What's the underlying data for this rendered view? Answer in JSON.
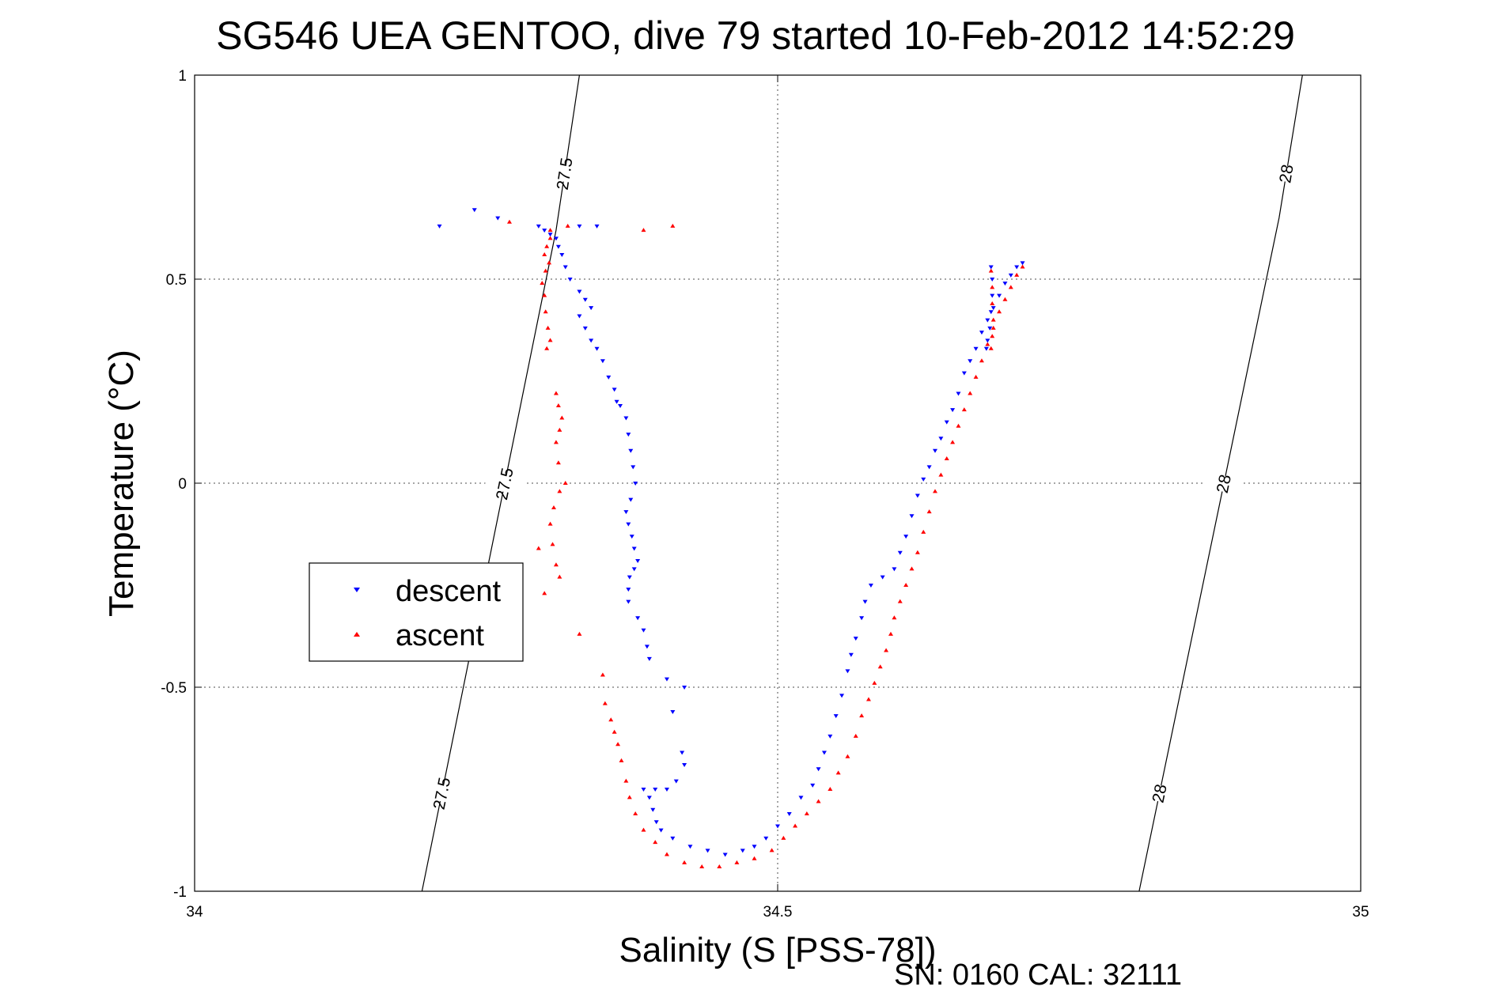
{
  "chart_data": {
    "type": "scatter",
    "title": "SG546 UEA GENTOO, dive 79 started 10-Feb-2012 14:52:29",
    "xlabel": "Salinity (S [PSS-78])",
    "ylabel": "Temperature (°C)",
    "xlim": [
      34,
      35
    ],
    "ylim": [
      -1,
      1
    ],
    "x_ticks": [
      34,
      34.5,
      35
    ],
    "x_tick_labels": [
      "34",
      "34.5",
      "35"
    ],
    "y_ticks": [
      -1,
      -0.5,
      0,
      0.5,
      1
    ],
    "y_tick_labels": [
      "-1",
      "-0.5",
      "0",
      "0.5",
      "1"
    ],
    "grid": true,
    "legend_position": "left",
    "footer": "SN: 0160  CAL: 32111",
    "density_contours": [
      {
        "label": "27.5",
        "points": [
          [
            34.195,
            -1.0
          ],
          [
            34.31,
            0.62
          ],
          [
            34.33,
            1.0
          ]
        ]
      },
      {
        "label": "28",
        "points": [
          [
            34.81,
            -1.0
          ],
          [
            34.93,
            0.65
          ],
          [
            34.95,
            1.0
          ]
        ]
      }
    ],
    "series": [
      {
        "name": "descent",
        "color": "#0000ff",
        "marker": "triangle-down",
        "points": [
          [
            34.21,
            0.63
          ],
          [
            34.24,
            0.67
          ],
          [
            34.26,
            0.65
          ],
          [
            34.295,
            0.63
          ],
          [
            34.33,
            0.63
          ],
          [
            34.345,
            0.63
          ],
          [
            34.3,
            0.62
          ],
          [
            34.305,
            0.61
          ],
          [
            34.31,
            0.6
          ],
          [
            34.312,
            0.58
          ],
          [
            34.315,
            0.56
          ],
          [
            34.318,
            0.53
          ],
          [
            34.322,
            0.5
          ],
          [
            34.33,
            0.47
          ],
          [
            34.335,
            0.45
          ],
          [
            34.34,
            0.43
          ],
          [
            34.33,
            0.41
          ],
          [
            34.335,
            0.38
          ],
          [
            34.34,
            0.35
          ],
          [
            34.345,
            0.33
          ],
          [
            34.35,
            0.3
          ],
          [
            34.355,
            0.26
          ],
          [
            34.36,
            0.23
          ],
          [
            34.362,
            0.2
          ],
          [
            34.365,
            0.19
          ],
          [
            34.37,
            0.16
          ],
          [
            34.372,
            0.12
          ],
          [
            34.374,
            0.08
          ],
          [
            34.376,
            0.04
          ],
          [
            34.378,
            0.0
          ],
          [
            34.374,
            -0.04
          ],
          [
            34.37,
            -0.07
          ],
          [
            34.372,
            -0.1
          ],
          [
            34.375,
            -0.13
          ],
          [
            34.377,
            -0.16
          ],
          [
            34.38,
            -0.19
          ],
          [
            34.377,
            -0.21
          ],
          [
            34.373,
            -0.23
          ],
          [
            34.372,
            -0.26
          ],
          [
            34.372,
            -0.29
          ],
          [
            34.38,
            -0.33
          ],
          [
            34.385,
            -0.36
          ],
          [
            34.388,
            -0.4
          ],
          [
            34.39,
            -0.43
          ],
          [
            34.405,
            -0.48
          ],
          [
            34.42,
            -0.5
          ],
          [
            34.41,
            -0.56
          ],
          [
            34.418,
            -0.66
          ],
          [
            34.42,
            -0.69
          ],
          [
            34.413,
            -0.73
          ],
          [
            34.405,
            -0.75
          ],
          [
            34.395,
            -0.75
          ],
          [
            34.385,
            -0.75
          ],
          [
            34.39,
            -0.77
          ],
          [
            34.393,
            -0.8
          ],
          [
            34.396,
            -0.83
          ],
          [
            34.4,
            -0.85
          ],
          [
            34.41,
            -0.87
          ],
          [
            34.425,
            -0.89
          ],
          [
            34.44,
            -0.9
          ],
          [
            34.455,
            -0.91
          ],
          [
            34.47,
            -0.9
          ],
          [
            34.48,
            -0.89
          ],
          [
            34.49,
            -0.87
          ],
          [
            34.5,
            -0.84
          ],
          [
            34.51,
            -0.81
          ],
          [
            34.52,
            -0.77
          ],
          [
            34.53,
            -0.74
          ],
          [
            34.535,
            -0.7
          ],
          [
            34.54,
            -0.66
          ],
          [
            34.545,
            -0.62
          ],
          [
            34.55,
            -0.57
          ],
          [
            34.555,
            -0.52
          ],
          [
            34.56,
            -0.46
          ],
          [
            34.563,
            -0.42
          ],
          [
            34.567,
            -0.38
          ],
          [
            34.572,
            -0.33
          ],
          [
            34.575,
            -0.29
          ],
          [
            34.58,
            -0.25
          ],
          [
            34.59,
            -0.23
          ],
          [
            34.6,
            -0.21
          ],
          [
            34.605,
            -0.17
          ],
          [
            34.61,
            -0.13
          ],
          [
            34.615,
            -0.08
          ],
          [
            34.62,
            -0.03
          ],
          [
            34.625,
            0.01
          ],
          [
            34.63,
            0.04
          ],
          [
            34.635,
            0.08
          ],
          [
            34.64,
            0.11
          ],
          [
            34.645,
            0.15
          ],
          [
            34.65,
            0.18
          ],
          [
            34.655,
            0.22
          ],
          [
            34.66,
            0.27
          ],
          [
            34.665,
            0.3
          ],
          [
            34.67,
            0.33
          ],
          [
            34.675,
            0.37
          ],
          [
            34.68,
            0.4
          ],
          [
            34.685,
            0.43
          ],
          [
            34.69,
            0.46
          ],
          [
            34.695,
            0.49
          ],
          [
            34.7,
            0.51
          ],
          [
            34.705,
            0.53
          ],
          [
            34.71,
            0.54
          ],
          [
            34.683,
            0.53
          ],
          [
            34.684,
            0.5
          ],
          [
            34.684,
            0.46
          ],
          [
            34.683,
            0.42
          ],
          [
            34.682,
            0.38
          ],
          [
            34.68,
            0.35
          ],
          [
            34.679,
            0.33
          ]
        ]
      },
      {
        "name": "ascent",
        "color": "#ff0000",
        "marker": "triangle-up",
        "points": [
          [
            34.27,
            0.64
          ],
          [
            34.32,
            0.63
          ],
          [
            34.385,
            0.62
          ],
          [
            34.41,
            0.63
          ],
          [
            34.305,
            0.62
          ],
          [
            34.305,
            0.6
          ],
          [
            34.302,
            0.58
          ],
          [
            34.3,
            0.56
          ],
          [
            34.304,
            0.54
          ],
          [
            34.301,
            0.52
          ],
          [
            34.298,
            0.49
          ],
          [
            34.3,
            0.46
          ],
          [
            34.301,
            0.42
          ],
          [
            34.303,
            0.38
          ],
          [
            34.305,
            0.35
          ],
          [
            34.302,
            0.33
          ],
          [
            34.31,
            0.22
          ],
          [
            34.312,
            0.19
          ],
          [
            34.315,
            0.16
          ],
          [
            34.313,
            0.13
          ],
          [
            34.31,
            0.1
          ],
          [
            34.312,
            0.05
          ],
          [
            34.318,
            0.0
          ],
          [
            34.313,
            -0.02
          ],
          [
            34.308,
            -0.06
          ],
          [
            34.305,
            -0.1
          ],
          [
            34.307,
            -0.15
          ],
          [
            34.31,
            -0.2
          ],
          [
            34.313,
            -0.23
          ],
          [
            34.3,
            -0.27
          ],
          [
            34.295,
            -0.16
          ],
          [
            34.33,
            -0.37
          ],
          [
            34.35,
            -0.47
          ],
          [
            34.352,
            -0.54
          ],
          [
            34.357,
            -0.58
          ],
          [
            34.36,
            -0.61
          ],
          [
            34.363,
            -0.64
          ],
          [
            34.366,
            -0.68
          ],
          [
            34.37,
            -0.73
          ],
          [
            34.373,
            -0.77
          ],
          [
            34.378,
            -0.81
          ],
          [
            34.385,
            -0.85
          ],
          [
            34.395,
            -0.88
          ],
          [
            34.405,
            -0.91
          ],
          [
            34.42,
            -0.93
          ],
          [
            34.435,
            -0.94
          ],
          [
            34.45,
            -0.94
          ],
          [
            34.465,
            -0.93
          ],
          [
            34.48,
            -0.92
          ],
          [
            34.495,
            -0.9
          ],
          [
            34.505,
            -0.87
          ],
          [
            34.515,
            -0.84
          ],
          [
            34.525,
            -0.81
          ],
          [
            34.535,
            -0.78
          ],
          [
            34.545,
            -0.75
          ],
          [
            34.552,
            -0.71
          ],
          [
            34.56,
            -0.67
          ],
          [
            34.567,
            -0.62
          ],
          [
            34.572,
            -0.57
          ],
          [
            34.578,
            -0.53
          ],
          [
            34.583,
            -0.49
          ],
          [
            34.588,
            -0.45
          ],
          [
            34.593,
            -0.41
          ],
          [
            34.597,
            -0.37
          ],
          [
            34.6,
            -0.33
          ],
          [
            34.605,
            -0.29
          ],
          [
            34.61,
            -0.25
          ],
          [
            34.615,
            -0.21
          ],
          [
            34.62,
            -0.17
          ],
          [
            34.625,
            -0.12
          ],
          [
            34.63,
            -0.07
          ],
          [
            34.635,
            -0.02
          ],
          [
            34.64,
            0.02
          ],
          [
            34.645,
            0.06
          ],
          [
            34.65,
            0.1
          ],
          [
            34.655,
            0.14
          ],
          [
            34.66,
            0.18
          ],
          [
            34.665,
            0.22
          ],
          [
            34.67,
            0.26
          ],
          [
            34.675,
            0.3
          ],
          [
            34.68,
            0.34
          ],
          [
            34.685,
            0.38
          ],
          [
            34.69,
            0.42
          ],
          [
            34.695,
            0.45
          ],
          [
            34.7,
            0.48
          ],
          [
            34.705,
            0.51
          ],
          [
            34.71,
            0.53
          ],
          [
            34.683,
            0.52
          ],
          [
            34.684,
            0.48
          ],
          [
            34.684,
            0.44
          ],
          [
            34.685,
            0.4
          ],
          [
            34.684,
            0.36
          ],
          [
            34.683,
            0.33
          ]
        ]
      }
    ]
  }
}
